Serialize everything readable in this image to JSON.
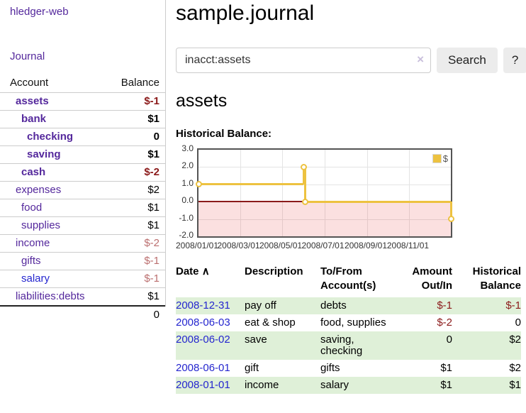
{
  "app": {
    "title": "hledger-web",
    "journal_label": "Journal"
  },
  "colors": {
    "link_purple": "#54289c",
    "link_blue": "#2526cf",
    "negative_strong": "#8b1a1a",
    "negative_muted": "#bb6f6f",
    "row_green": "#dff0d8",
    "chart_line": "#EDC240"
  },
  "sidebar": {
    "header": {
      "account": "Account",
      "balance": "Balance"
    },
    "accounts": [
      {
        "name": "assets",
        "balance": "$-1",
        "depth": 1,
        "bold": true,
        "neg": "strong"
      },
      {
        "name": "bank",
        "balance": "$1",
        "depth": 2,
        "bold": true
      },
      {
        "name": "checking",
        "balance": "0",
        "depth": 3,
        "bold": true
      },
      {
        "name": "saving",
        "balance": "$1",
        "depth": 3,
        "bold": true
      },
      {
        "name": "cash",
        "balance": "$-2",
        "depth": 2,
        "bold": true,
        "neg": "strong"
      },
      {
        "name": "expenses",
        "balance": "$2",
        "depth": 1
      },
      {
        "name": "food",
        "balance": "$1",
        "depth": 2
      },
      {
        "name": "supplies",
        "balance": "$1",
        "depth": 2
      },
      {
        "name": "income",
        "balance": "$-2",
        "depth": 1,
        "neg": "muted"
      },
      {
        "name": "gifts",
        "balance": "$-1",
        "depth": 2,
        "neg": "muted"
      },
      {
        "name": "salary",
        "balance": "$-1",
        "depth": 2,
        "neg": "muted",
        "link": "blue"
      },
      {
        "name": "liabilities:debts",
        "balance": "$1",
        "depth": 1
      }
    ],
    "total": "0"
  },
  "header": {
    "title": "sample.journal"
  },
  "search": {
    "value": "inacct:assets",
    "clear_glyph": "×",
    "button_label": "Search",
    "help_label": "?"
  },
  "account_page": {
    "title": "assets",
    "chart_label": "Historical Balance:"
  },
  "chart_data": {
    "type": "line",
    "step": true,
    "title": "Historical Balance",
    "series": [
      {
        "name": "$",
        "color": "#EDC240",
        "points": [
          [
            "2008-01-01",
            1
          ],
          [
            "2008-06-01",
            2
          ],
          [
            "2008-06-03",
            0
          ],
          [
            "2008-12-31",
            -1
          ]
        ]
      }
    ],
    "ylim": [
      -2,
      3
    ],
    "yticks": [
      "3.0",
      "2.0",
      "1.0",
      "0.0",
      "-1.0",
      "-2.0"
    ],
    "xticks": [
      "2008/01/01",
      "2008/03/01",
      "2008/05/01",
      "2008/07/01",
      "2008/09/01",
      "2008/11/01"
    ],
    "x_domain": [
      "2008-01-01",
      "2008-12-31"
    ],
    "grid": true,
    "legend_position": "top-right",
    "negative_fill": "rgba(230,60,60,0.16)",
    "zero_line_color": "#8b1a1a"
  },
  "register_table": {
    "headers": [
      {
        "lines": [
          "Date"
        ],
        "sort": "∧"
      },
      {
        "lines": [
          "Description"
        ]
      },
      {
        "lines": [
          "To/From",
          "Account(s)"
        ]
      },
      {
        "lines": [
          "Amount",
          "Out/In"
        ],
        "align": "right"
      },
      {
        "lines": [
          "Historical",
          "Balance"
        ],
        "align": "right"
      }
    ],
    "rows": [
      {
        "date": "2008-12-31",
        "description": "pay off",
        "accounts": [
          "debts"
        ],
        "amount": "$-1",
        "amount_neg": true,
        "balance": "$-1",
        "balance_neg": true
      },
      {
        "date": "2008-06-03",
        "description": "eat & shop",
        "accounts": [
          "food, supplies"
        ],
        "amount": "$-2",
        "amount_neg": true,
        "balance": "0"
      },
      {
        "date": "2008-06-02",
        "description": "save",
        "accounts": [
          "saving,",
          "checking"
        ],
        "amount": "0",
        "balance": "$2"
      },
      {
        "date": "2008-06-01",
        "description": "gift",
        "accounts": [
          "gifts"
        ],
        "amount": "$1",
        "balance": "$2"
      },
      {
        "date": "2008-01-01",
        "description": "income",
        "accounts": [
          "salary"
        ],
        "amount": "$1",
        "balance": "$1"
      }
    ]
  }
}
